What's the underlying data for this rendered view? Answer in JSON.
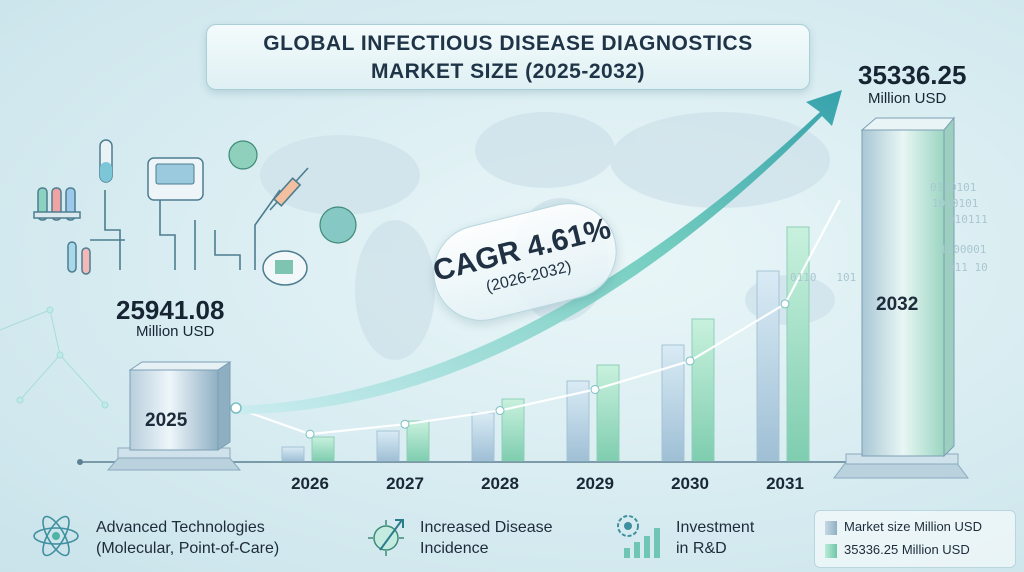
{
  "title": {
    "line1": "GLOBAL INFECTIOUS DISEASE DIAGNOSTICS",
    "line2": "MARKET SIZE (2025-2032)"
  },
  "start": {
    "value": "25941.08",
    "unit": "Million USD",
    "year": "2025"
  },
  "end": {
    "value": "35336.25",
    "unit": "Million USD",
    "year": "2032"
  },
  "cagr": {
    "label": "CAGR 4.61%",
    "period": "(2026-2032)"
  },
  "features": [
    {
      "line1": "Advanced Technologies",
      "line2": "(Molecular, Point-of-Care)",
      "icon": "atom-icon"
    },
    {
      "line1": "Increased Disease",
      "line2": "Incidence",
      "icon": "virus-trend-icon"
    },
    {
      "line1": "Investment",
      "line2": "in R&D",
      "icon": "gear-chart-icon"
    }
  ],
  "legend": [
    {
      "label": "Market size Million USD",
      "color": "#9fb8c8"
    },
    {
      "label": "35336.25 Million USD",
      "color": "#7fd0b4"
    }
  ],
  "binary_text": [
    "0110101",
    "1010101",
    "010111",
    "1100001",
    "0110   101",
    "011 10"
  ],
  "colors": {
    "arrow": "#5fc4b5",
    "bar_blue": "#b7d3e4",
    "bar_green": "#9fe0c4",
    "line": "#ffffff"
  },
  "chart_data": {
    "type": "bar",
    "title": "GLOBAL INFECTIOUS DISEASE DIAGNOSTICS MARKET SIZE (2025-2032)",
    "categories": [
      "2025",
      "2026",
      "2027",
      "2028",
      "2029",
      "2030",
      "2031",
      "2032"
    ],
    "series": [
      {
        "name": "Market size Million USD",
        "values": [
          25941.08,
          null,
          null,
          null,
          null,
          null,
          null,
          35336.25
        ]
      }
    ],
    "annotations": [
      "CAGR 4.61%",
      "(2026-2032)"
    ],
    "unit": "Million USD",
    "grid": false,
    "legend_position": "bottom-right"
  }
}
